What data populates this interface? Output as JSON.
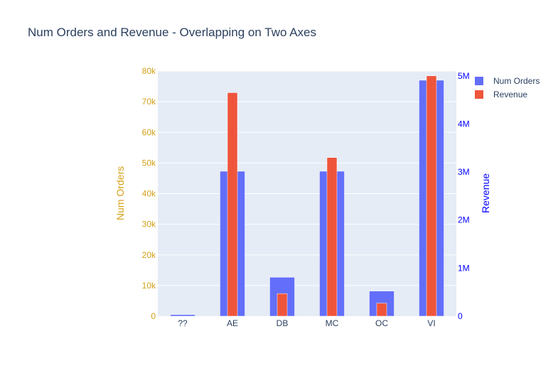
{
  "chart_data": {
    "type": "bar",
    "title": "Num Orders and Revenue - Overlapping on Two Axes",
    "categories": [
      "??",
      "AE",
      "DB",
      "MC",
      "OC",
      "VI"
    ],
    "series": [
      {
        "name": "Num Orders",
        "axis": "left",
        "color": "#636efa",
        "values": [
          500,
          47300,
          12700,
          47300,
          8200,
          77000
        ]
      },
      {
        "name": "Revenue",
        "axis": "right",
        "color": "#ef553b",
        "values": [
          0,
          4650000,
          470000,
          3300000,
          270000,
          5000000
        ]
      }
    ],
    "y_left": {
      "label": "Num Orders",
      "color": "#d4a017",
      "range": [
        0,
        80000
      ],
      "ticks": [
        0,
        10000,
        20000,
        30000,
        40000,
        50000,
        60000,
        70000,
        80000
      ],
      "tick_labels": [
        "0",
        "10k",
        "20k",
        "30k",
        "40k",
        "50k",
        "60k",
        "70k",
        "80k"
      ]
    },
    "y_right": {
      "label": "Revenue",
      "color": "#0000ff",
      "range": [
        0,
        5100000
      ],
      "ticks": [
        0,
        1000000,
        2000000,
        3000000,
        4000000,
        5000000
      ],
      "tick_labels": [
        "0",
        "1M",
        "2M",
        "3M",
        "4M",
        "5M"
      ]
    },
    "grid": true,
    "legend_position": "top-right",
    "plot_background": "#e5ecf6"
  }
}
